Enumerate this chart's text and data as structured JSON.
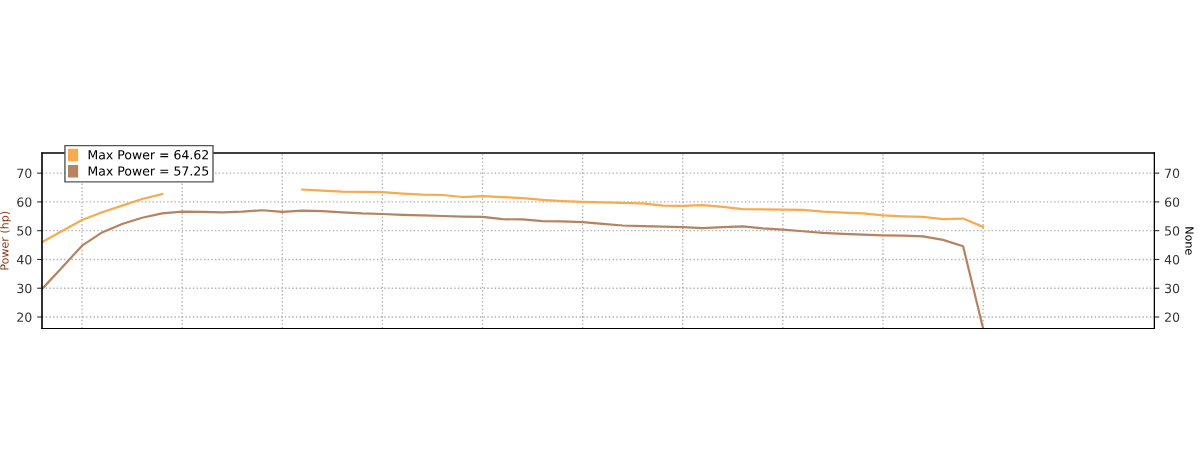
{
  "chart_data": {
    "type": "line",
    "ylabel": "Power (hp)",
    "y2label": "None",
    "categories": [
      null,
      null,
      null,
      null,
      null,
      null,
      null,
      null,
      null,
      null,
      null,
      null,
      null,
      null,
      null,
      null,
      null,
      null,
      null,
      null,
      null,
      null,
      null,
      null,
      null,
      null,
      null,
      null,
      null,
      null,
      null,
      null,
      null,
      null,
      null,
      null,
      null,
      null,
      null,
      null,
      null,
      null,
      null,
      null,
      null,
      null,
      null,
      null
    ],
    "series": [
      {
        "name": "Max Power = 64.62",
        "color": "#f7aa4e",
        "values": [
          46,
          49.9,
          53.7,
          56.4,
          58.7,
          61,
          62.7,
          null,
          null,
          null,
          null,
          null,
          null,
          64.3,
          63.9,
          63.6,
          63.5,
          63.4,
          62.9,
          62.5,
          62.4,
          61.7,
          62,
          61.7,
          61.3,
          60.7,
          60.3,
          60,
          59.8,
          59.7,
          59.5,
          58.7,
          58.6,
          58.9,
          58.3,
          57.5,
          57.4,
          57.3,
          57.2,
          56.6,
          56.3,
          56,
          55.3,
          55,
          54.8,
          54,
          54.2,
          51.3
        ]
      },
      {
        "name": "Max Power = 57.25",
        "color": "#b5835f",
        "values": [
          29.7,
          37.2,
          44.8,
          49.4,
          52.3,
          54.5,
          56,
          56.6,
          56.5,
          56.4,
          56.6,
          57.1,
          56.5,
          57,
          56.8,
          56.4,
          56,
          55.8,
          55.5,
          55.3,
          55.1,
          54.9,
          54.8,
          54,
          53.9,
          53.3,
          53.2,
          53,
          52.4,
          51.8,
          51.6,
          51.4,
          51.2,
          50.9,
          51.2,
          51.5,
          50.8,
          50.4,
          49.8,
          49.2,
          48.9,
          48.6,
          48.4,
          48.3,
          48,
          46.8,
          44.6,
          16
        ]
      }
    ],
    "ylim": [
      16,
      77
    ],
    "yticks": [
      20,
      30,
      40,
      50,
      60,
      70
    ],
    "y2lim": [
      16,
      77
    ],
    "y2ticks": [
      20,
      30,
      40,
      50,
      60,
      70
    ],
    "tick_labels": "y",
    "grid": true,
    "legend": "top left",
    "line_style": "solid",
    "marker": "none"
  }
}
